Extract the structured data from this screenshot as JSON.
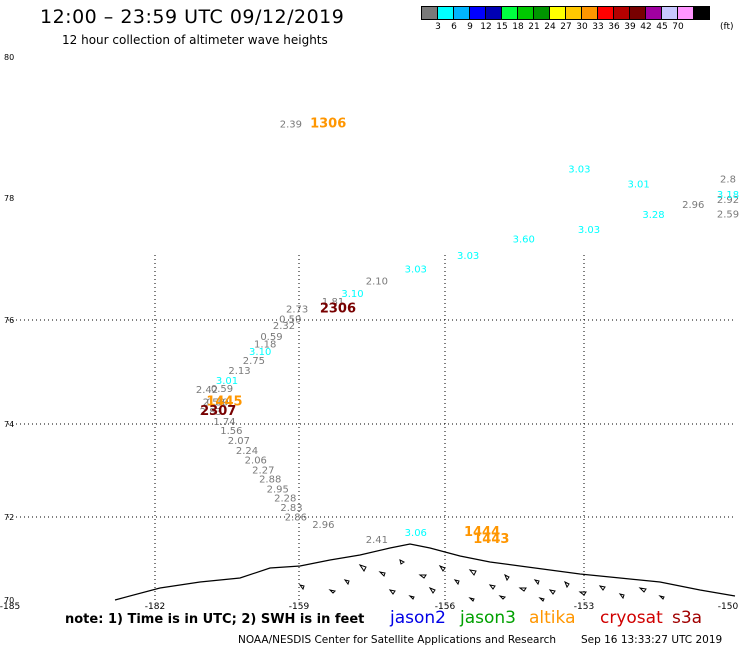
{
  "header": {
    "title": "12:00 – 23:59 UTC 09/12/2019",
    "subtitle": "12 hour collection of altimeter wave heights"
  },
  "colorbar": {
    "swatches": [
      "#7a7a7a",
      "#00ffff",
      "#00b4ff",
      "#0000ff",
      "#0000b4",
      "#00ff40",
      "#00c800",
      "#009600",
      "#ffff00",
      "#ffc800",
      "#ff9600",
      "#ff0000",
      "#b40000",
      "#780000",
      "#a000a0",
      "#c8c8ff",
      "#ff96ff",
      "#000000"
    ],
    "labels": [
      "3",
      "6",
      "9",
      "12",
      "15",
      "18",
      "21",
      "24",
      "27",
      "30",
      "33",
      "36",
      "39",
      "42",
      "45",
      "70"
    ],
    "unit": "(ft)"
  },
  "axes": {
    "y_labels": [
      "80",
      "78",
      "76",
      "74",
      "72",
      "70"
    ],
    "x_labels": [
      "-185",
      "-182",
      "-159",
      "-156",
      "-153",
      "-150"
    ],
    "x_domain": [
      -185,
      -150
    ],
    "y_domain": [
      70,
      80
    ],
    "gridlines": true
  },
  "observations": [
    {
      "text": "2.39",
      "color": "#7a7a7a",
      "lon": -160.3,
      "lat": 79.0
    },
    {
      "text": "1306",
      "color": "#ff9600",
      "lon": -158.4,
      "lat": 79.0,
      "bold": true
    },
    {
      "text": "3.03",
      "color": "#00ffff",
      "lon": -153.1,
      "lat": 78.36
    },
    {
      "text": "3.01",
      "color": "#00ffff",
      "lon": -151.9,
      "lat": 78.15
    },
    {
      "text": "2.8",
      "color": "#7a7a7a",
      "lon": -149.4,
      "lat": 78.22
    },
    {
      "text": "2.96",
      "color": "#7a7a7a",
      "lon": -150.8,
      "lat": 77.84
    },
    {
      "text": "2.92",
      "color": "#7a7a7a",
      "lon": -150.0,
      "lat": 77.92
    },
    {
      "text": "3.18",
      "color": "#00ffff",
      "lon": -149.1,
      "lat": 78.0
    },
    {
      "text": "2.59",
      "color": "#7a7a7a",
      "lon": -148.7,
      "lat": 77.68
    },
    {
      "text": "3.28",
      "color": "#00ffff",
      "lon": -151.6,
      "lat": 77.67
    },
    {
      "text": "3.03",
      "color": "#00ffff",
      "lon": -152.9,
      "lat": 77.43
    },
    {
      "text": "3.60",
      "color": "#00ffff",
      "lon": -154.3,
      "lat": 77.27
    },
    {
      "text": "3.03",
      "color": "#00ffff",
      "lon": -155.5,
      "lat": 77.0
    },
    {
      "text": "3.03",
      "color": "#00ffff",
      "lon": -156.6,
      "lat": 76.78
    },
    {
      "text": "2.10",
      "color": "#7a7a7a",
      "lon": -157.4,
      "lat": 76.58
    },
    {
      "text": "3.10",
      "color": "#00ffff",
      "lon": -157.9,
      "lat": 76.38
    },
    {
      "text": "1.81",
      "color": "#7a7a7a",
      "lon": -158.3,
      "lat": 76.25
    },
    {
      "text": "2.73",
      "color": "#7a7a7a",
      "lon": -159.3,
      "lat": 76.12
    },
    {
      "text": "2306",
      "color": "#780000",
      "lon": -158.2,
      "lat": 76.12,
      "bold": true
    },
    {
      "text": "0.59",
      "color": "#7a7a7a",
      "lon": -160.4,
      "lat": 75.95
    },
    {
      "text": "2.32",
      "color": "#7a7a7a",
      "lon": -161.4,
      "lat": 75.83
    },
    {
      "text": "0.59",
      "color": "#7a7a7a",
      "lon": -163.4,
      "lat": 75.62
    },
    {
      "text": "1.18",
      "color": "#7a7a7a",
      "lon": -164.4,
      "lat": 75.47
    },
    {
      "text": "3.10",
      "color": "#00ffff",
      "lon": -165.2,
      "lat": 75.33
    },
    {
      "text": "2.75",
      "color": "#7a7a7a",
      "lon": -166.2,
      "lat": 75.15
    },
    {
      "text": "2.13",
      "color": "#7a7a7a",
      "lon": -168.5,
      "lat": 74.96
    },
    {
      "text": "3.01",
      "color": "#00ffff",
      "lon": -170.5,
      "lat": 74.77
    },
    {
      "text": "2.42",
      "color": "#7a7a7a",
      "lon": -173.7,
      "lat": 74.6
    },
    {
      "text": "0.59",
      "color": "#7a7a7a",
      "lon": -171.3,
      "lat": 74.62
    },
    {
      "text": "2.58",
      "color": "#7a7a7a",
      "lon": -172.6,
      "lat": 74.36
    },
    {
      "text": "0.59",
      "color": "#7a7a7a",
      "lon": -172.0,
      "lat": 74.36
    },
    {
      "text": "1445",
      "color": "#ff9600",
      "lon": -170.9,
      "lat": 74.36,
      "bold": true
    },
    {
      "text": "2.83",
      "color": "#7a7a7a",
      "lon": -173.1,
      "lat": 74.17
    },
    {
      "text": "2307",
      "color": "#780000",
      "lon": -171.9,
      "lat": 74.17,
      "bold": true
    },
    {
      "text": "1.74",
      "color": "#7a7a7a",
      "lon": -170.9,
      "lat": 73.98
    },
    {
      "text": "1.56",
      "color": "#7a7a7a",
      "lon": -169.8,
      "lat": 73.78
    },
    {
      "text": "2.07",
      "color": "#7a7a7a",
      "lon": -168.6,
      "lat": 73.57
    },
    {
      "text": "2.24",
      "color": "#7a7a7a",
      "lon": -167.3,
      "lat": 73.36
    },
    {
      "text": "2.06",
      "color": "#7a7a7a",
      "lon": -165.9,
      "lat": 73.15
    },
    {
      "text": "2.27",
      "color": "#7a7a7a",
      "lon": -164.7,
      "lat": 72.94
    },
    {
      "text": "2.88",
      "color": "#7a7a7a",
      "lon": -163.6,
      "lat": 72.74
    },
    {
      "text": "2.95",
      "color": "#7a7a7a",
      "lon": -162.4,
      "lat": 72.53
    },
    {
      "text": "2.28",
      "color": "#7a7a7a",
      "lon": -161.2,
      "lat": 72.33
    },
    {
      "text": "2.83",
      "color": "#7a7a7a",
      "lon": -160.2,
      "lat": 72.13
    },
    {
      "text": "2.86",
      "color": "#7a7a7a",
      "lon": -159.5,
      "lat": 71.92
    },
    {
      "text": "2.96",
      "color": "#7a7a7a",
      "lon": -158.5,
      "lat": 71.73
    },
    {
      "text": "3.06",
      "color": "#00ffff",
      "lon": -156.6,
      "lat": 71.54
    },
    {
      "text": "1444",
      "color": "#ff9600",
      "lon": -155.2,
      "lat": 71.54,
      "bold": true
    },
    {
      "text": "2.41",
      "color": "#7a7a7a",
      "lon": -157.4,
      "lat": 71.37
    },
    {
      "text": "1443",
      "color": "#ff9600",
      "lon": -155.0,
      "lat": 71.37,
      "bold": true
    }
  ],
  "footer": {
    "note": "note:  1) Time is in UTC;  2) SWH is in feet",
    "legend": [
      {
        "label": "jason2",
        "color": "#0000e6"
      },
      {
        "label": "jason3",
        "color": "#00a000"
      },
      {
        "label": "altika",
        "color": "#ff9600"
      },
      {
        "label": "cryosat",
        "color": "#d00000"
      },
      {
        "label": "s3a",
        "color": "#a00000"
      }
    ],
    "credit": "NOAA/NESDIS Center for Satellite Applications and Research",
    "timestamp": "Sep 16 13:33:27 UTC 2019"
  }
}
